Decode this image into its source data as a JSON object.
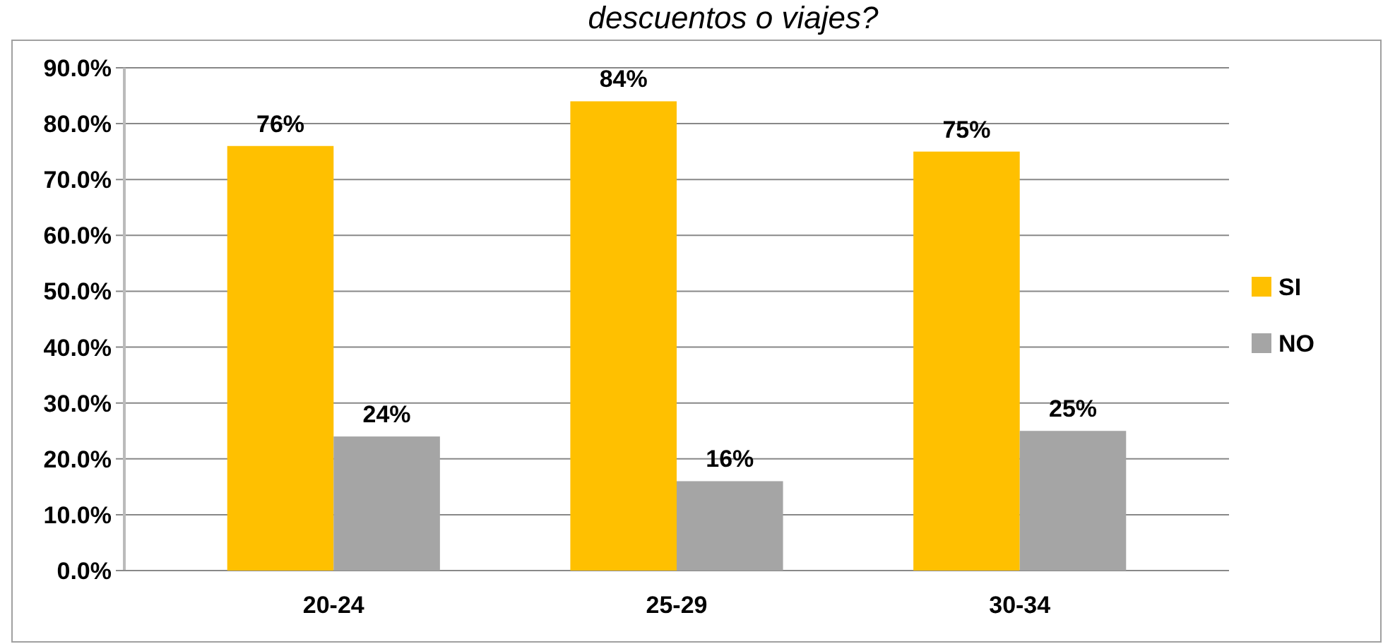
{
  "chart_data": {
    "type": "bar",
    "title": "descuentos o viajes?",
    "categories": [
      "20-24",
      "25-29",
      "30-34"
    ],
    "series": [
      {
        "name": "SI",
        "color": "#ffc000",
        "values": [
          76,
          84,
          75
        ],
        "value_labels": [
          "76%",
          "84%",
          "75%"
        ]
      },
      {
        "name": "NO",
        "color": "#a5a5a5",
        "values": [
          24,
          16,
          25
        ],
        "value_labels": [
          "24%",
          "16%",
          "25%"
        ]
      }
    ],
    "ylim": [
      0,
      90
    ],
    "yticks": [
      {
        "value": 0,
        "label": "0.0%"
      },
      {
        "value": 10,
        "label": "10.0%"
      },
      {
        "value": 20,
        "label": "20.0%"
      },
      {
        "value": 30,
        "label": "30.0%"
      },
      {
        "value": 40,
        "label": "40.0%"
      },
      {
        "value": 50,
        "label": "50.0%"
      },
      {
        "value": 60,
        "label": "60.0%"
      },
      {
        "value": 70,
        "label": "70.0%"
      },
      {
        "value": 80,
        "label": "80.0%"
      },
      {
        "value": 90,
        "label": "90.0%"
      }
    ],
    "grid": "y",
    "legend": "right"
  }
}
